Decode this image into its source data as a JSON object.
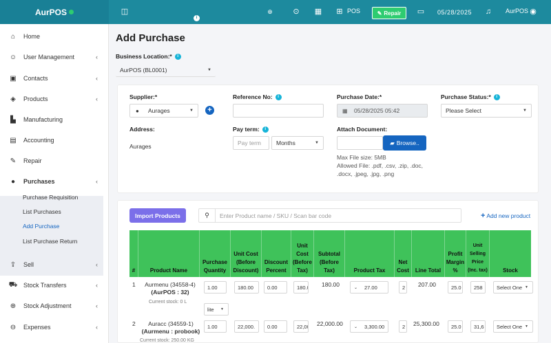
{
  "topbar": {
    "brand": "AurPOS",
    "pos_label": "POS",
    "repair_label": "Repair",
    "date": "05/28/2025",
    "user": "AurPOS"
  },
  "sidebar": {
    "items": [
      {
        "label": "Home",
        "icon": "home-icon",
        "glyph": "⌂"
      },
      {
        "label": "User Management",
        "icon": "users-icon",
        "glyph": "☺"
      },
      {
        "label": "Contacts",
        "icon": "contacts-icon",
        "glyph": "▣"
      },
      {
        "label": "Products",
        "icon": "box-icon",
        "glyph": "◈"
      },
      {
        "label": "Manufacturing",
        "icon": "factory-icon",
        "glyph": "▙"
      },
      {
        "label": "Accounting",
        "icon": "book-icon",
        "glyph": "▤"
      },
      {
        "label": "Repair",
        "icon": "wrench-icon",
        "glyph": "✎"
      },
      {
        "label": "Purchases",
        "icon": "purchases-icon",
        "glyph": "●"
      },
      {
        "label": "Sell",
        "icon": "sell-icon",
        "glyph": "⇪"
      },
      {
        "label": "Stock Transfers",
        "icon": "truck-icon",
        "glyph": "⛟"
      },
      {
        "label": "Stock Adjustment",
        "icon": "adjust-icon",
        "glyph": "⊕"
      },
      {
        "label": "Expenses",
        "icon": "expenses-icon",
        "glyph": "⊖"
      }
    ],
    "purchase_sub": [
      "Purchase Requisition",
      "List Purchases",
      "Add Purchase",
      "List Purchase Return"
    ]
  },
  "page": {
    "title": "Add Purchase",
    "business_location_label": "Business Location:*",
    "business_location_value": "AurPOS (BL0001)"
  },
  "form": {
    "supplier_label": "Supplier:*",
    "supplier_value": "Aurages",
    "reference_label": "Reference No:",
    "purchase_date_label": "Purchase Date:*",
    "purchase_date_value": "05/28/2025 05:42",
    "purchase_status_label": "Purchase Status:*",
    "purchase_status_value": "Please Select",
    "address_label": "Address:",
    "address_value": "Aurages",
    "pay_term_label": "Pay term:",
    "pay_term_placeholder": "Pay term",
    "pay_term_unit": "Months",
    "attach_label": "Attach Document:",
    "browse_label": "Browse..",
    "max_size": "Max File size: 5MB",
    "allowed_1": "Allowed File: .pdf, .csv, .zip, .doc,",
    "allowed_2": ".docx, .jpeg, .jpg, .png"
  },
  "products": {
    "import_label": "Import Products",
    "search_placeholder": "Enter Product name / SKU / Scan bar code",
    "add_new_label": "Add new product"
  },
  "table": {
    "headers": [
      "#",
      "Product Name",
      "Purchase Quantity",
      "Unit Cost (Before Discount)",
      "Discount Percent",
      "Unit Cost (Before Tax)",
      "Subtotal (Before Tax)",
      "Product Tax",
      "Net Cost",
      "Line Total",
      "Profit Margin %",
      "Unit Selling Price (Inc. tax)",
      "Stock"
    ],
    "rows": [
      {
        "num": "1",
        "name": "Aurmenu (34558-4)",
        "brand": "(AurPOS : 32)",
        "stock": "Current stock: 0 L",
        "qty": "1.00",
        "unit": "lite",
        "ucost": "180.00",
        "disc": "0.00",
        "ucost_tax": "180.0",
        "subtotal": "180.00",
        "tax": "27.00",
        "net": "2",
        "line": "207.00",
        "margin": "25.0",
        "sell": "258",
        "stock_sel": "Select One"
      },
      {
        "num": "2",
        "name": "Auracc (34559-1)",
        "brand": "(Aurmenu : probook)",
        "stock": "Current stock: 250.00 KG",
        "qty": "1.00",
        "unit": "",
        "ucost": "22,000.",
        "disc": "0.00",
        "ucost_tax": "22,00",
        "subtotal": "22,000.00",
        "tax": "3,300.00",
        "net": "2",
        "line": "25,300.00",
        "margin": "25.0",
        "sell": "31,6",
        "stock_sel": "Select One"
      }
    ]
  }
}
